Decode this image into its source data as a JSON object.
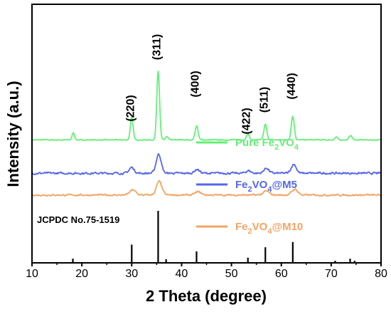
{
  "chart_data": {
    "type": "line",
    "xlabel": "2 Theta (degree)",
    "ylabel": "Intensity (a.u.)",
    "xlim": [
      10,
      80
    ],
    "xticks": [
      "10",
      "20",
      "30",
      "40",
      "50",
      "60",
      "70",
      "80"
    ],
    "yticks_shown": false,
    "grid": false,
    "peak_labels": [
      {
        "label": "(220)",
        "x": 30.0
      },
      {
        "label": "(311)",
        "x": 35.3
      },
      {
        "label": "(400)",
        "x": 43.0
      },
      {
        "label": "(422)",
        "x": 53.3
      },
      {
        "label": "(511)",
        "x": 56.8
      },
      {
        "label": "(440)",
        "x": 62.3
      }
    ],
    "series": [
      {
        "name": "Pure Fe2VO4",
        "name_base": "Pure Fe",
        "name_sub1": "2",
        "name_mid": "VO",
        "name_sub2": "4",
        "name_tail": "",
        "color": "#66ee77",
        "offset": 5.2,
        "noise": 0.03,
        "peaks": [
          [
            18.3,
            0.55,
            0.25
          ],
          [
            30.0,
            1.75,
            0.28
          ],
          [
            35.3,
            5.4,
            0.28
          ],
          [
            37.0,
            0.25,
            0.25
          ],
          [
            43.0,
            1.1,
            0.3
          ],
          [
            53.3,
            0.45,
            0.3
          ],
          [
            56.8,
            1.2,
            0.3
          ],
          [
            62.3,
            1.85,
            0.3
          ],
          [
            71.0,
            0.2,
            0.3
          ],
          [
            73.9,
            0.35,
            0.3
          ]
        ]
      },
      {
        "name": "Fe2VO4@M5",
        "name_base": "Fe",
        "name_sub1": "2",
        "name_mid": "VO",
        "name_sub2": "4",
        "name_tail": "@M5",
        "color": "#5566ee",
        "offset": 2.6,
        "noise": 0.06,
        "peaks": [
          [
            30.0,
            0.45,
            0.5
          ],
          [
            35.4,
            1.5,
            0.5
          ],
          [
            43.1,
            0.3,
            0.5
          ],
          [
            53.4,
            0.2,
            0.5
          ],
          [
            57.0,
            0.4,
            0.5
          ],
          [
            62.5,
            0.7,
            0.5
          ]
        ]
      },
      {
        "name": "Fe2VO4@M10",
        "name_base": "Fe",
        "name_sub1": "2",
        "name_mid": "VO",
        "name_sub2": "4",
        "name_tail": "@M10",
        "color": "#f4a463",
        "offset": 0.9,
        "noise": 0.05,
        "peaks": [
          [
            30.2,
            0.4,
            0.6
          ],
          [
            35.5,
            1.05,
            0.55
          ],
          [
            43.3,
            0.25,
            0.6
          ],
          [
            57.0,
            0.3,
            0.6
          ],
          [
            62.7,
            0.45,
            0.6
          ]
        ]
      }
    ],
    "reference": {
      "label": "JCPDC No.75-1519",
      "lines": [
        {
          "x": 18.2,
          "i": 0.08
        },
        {
          "x": 30.0,
          "i": 0.35
        },
        {
          "x": 35.3,
          "i": 1.0
        },
        {
          "x": 36.9,
          "i": 0.07
        },
        {
          "x": 43.0,
          "i": 0.22
        },
        {
          "x": 53.3,
          "i": 0.1
        },
        {
          "x": 56.8,
          "i": 0.3
        },
        {
          "x": 62.3,
          "i": 0.4
        },
        {
          "x": 70.8,
          "i": 0.04
        },
        {
          "x": 73.8,
          "i": 0.08
        },
        {
          "x": 74.7,
          "i": 0.04
        }
      ]
    }
  }
}
